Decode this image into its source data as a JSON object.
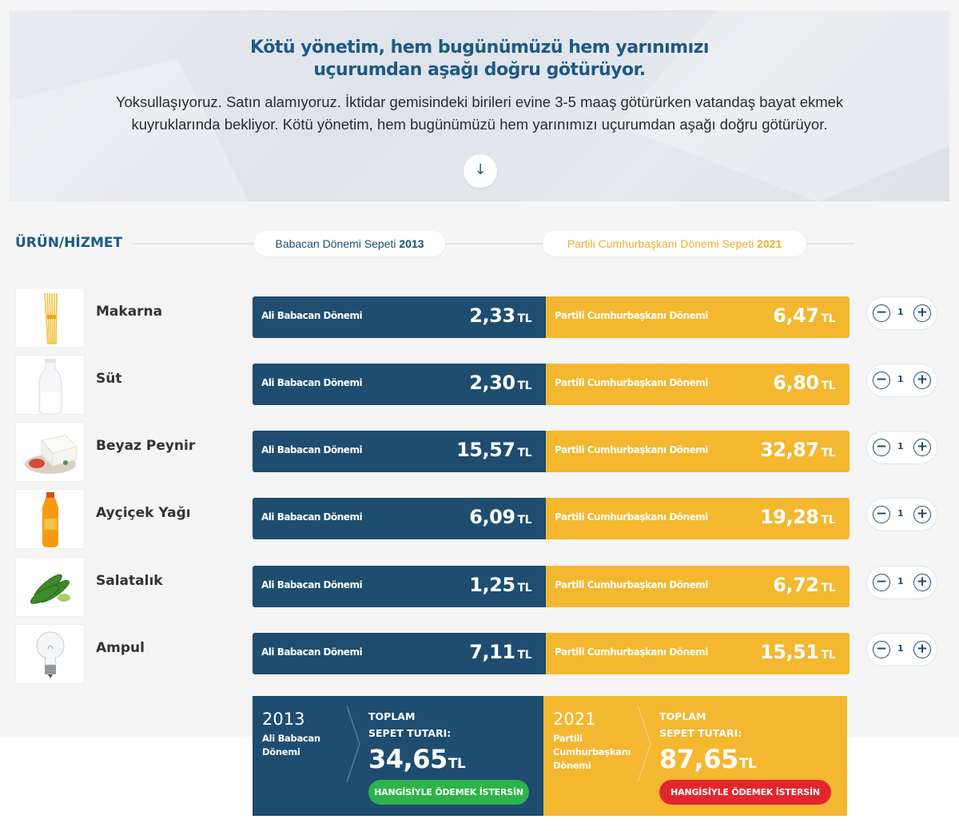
{
  "hero": {
    "title_line1": "Kötü yönetim, hem bugünümüzü hem yarınımızı",
    "title_line2": "uçurumdan aşağı doğru götürüyor.",
    "text_line1": "Yoksullaşıyoruz. Satın alamıyoruz. İktidar gemisindeki birileri evine 3-5 maaş götürürken vatandaş bayat ekmek",
    "text_line2": "kuyruklarında bekliyor. Kötü yönetim, hem bugünümüzü hem yarınımızı uçurumdan aşağı doğru götürüyor.",
    "arrow_icon": "arrow-down-icon",
    "arrow_glyph": "↓"
  },
  "header": {
    "label": "ÜRÜN/HİZMET",
    "basket_2013_prefix": "Babacan Dönemi Sepeti ",
    "basket_2013_year": "2013",
    "basket_2021_prefix": "Partili Cumhurbaşkanı Dönemi Sepeti ",
    "basket_2021_year": "2021"
  },
  "labels": {
    "period_2013": "Ali Babacan Dönemi",
    "period_2021": "Partili Cumhurbaşkanı Dönemi",
    "currency": "TL",
    "minus": "−",
    "plus": "+"
  },
  "products": [
    {
      "name": "Makarna",
      "price_2013": "2,33",
      "price_2021": "6,47",
      "qty": "1",
      "icon": "pasta-icon"
    },
    {
      "name": "Süt",
      "price_2013": "2,30",
      "price_2021": "6,80",
      "qty": "1",
      "icon": "milk-bottle-icon"
    },
    {
      "name": "Beyaz Peynir",
      "price_2013": "15,57",
      "price_2021": "32,87",
      "qty": "1",
      "icon": "cheese-icon"
    },
    {
      "name": "Ayçiçek Yağı",
      "price_2013": "6,09",
      "price_2021": "19,28",
      "qty": "1",
      "icon": "oil-bottle-icon"
    },
    {
      "name": "Salatalık",
      "price_2013": "1,25",
      "price_2021": "6,72",
      "qty": "1",
      "icon": "cucumber-icon"
    },
    {
      "name": "Ampul",
      "price_2013": "7,11",
      "price_2021": "15,51",
      "qty": "1",
      "icon": "light-bulb-icon"
    }
  ],
  "totals": {
    "t2013": {
      "year": "2013",
      "period_line1": "Ali Babacan",
      "period_line2": "Dönemi",
      "caption_line1": "TOPLAM",
      "caption_line2": "SEPET TUTARI:",
      "amount": "34,65",
      "currency": "TL",
      "button": "HANGİSİYLE ÖDEMEK İSTERSİN",
      "button_color": "#2db34a"
    },
    "t2021": {
      "year": "2021",
      "period_line1": "Partili",
      "period_line2": "Cumhurbaşkanı",
      "period_line3": "Dönemi",
      "caption_line1": "TOPLAM",
      "caption_line2": "SEPET TUTARI:",
      "amount": "87,65",
      "currency": "TL",
      "button": "HANGİSİYLE ÖDEMEK İSTERSİN",
      "button_color": "#e1272c"
    }
  },
  "colors": {
    "blue": "#1e4d70",
    "yellow": "#f3b730",
    "title_blue": "#1d5a85"
  }
}
